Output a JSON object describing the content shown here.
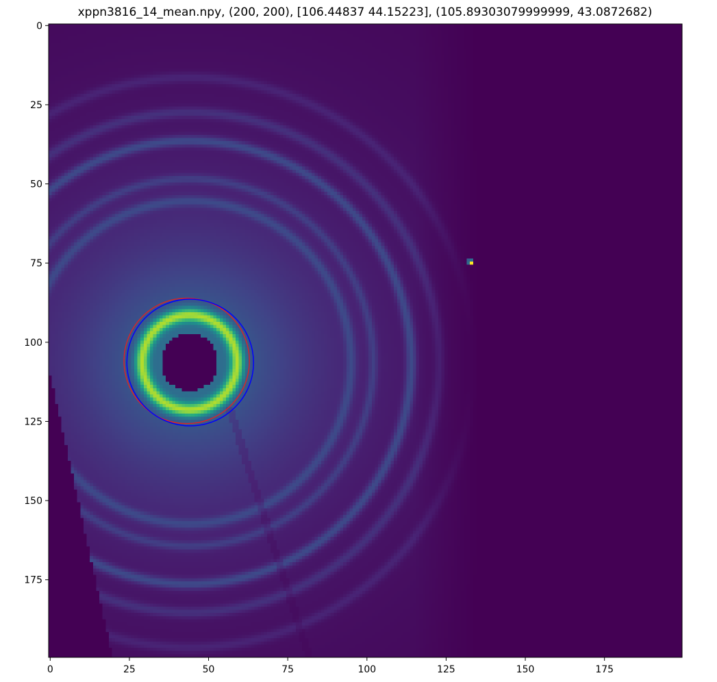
{
  "figure": {
    "title": "xppn3816_14_mean.npy, (200, 200), [106.44837  44.15223], (105.89303079999999, 43.0872682)"
  },
  "chart_data": {
    "type": "heatmap",
    "title": "xppn3816_14_mean.npy, (200, 200), [106.44837  44.15223], (105.89303079999999, 43.0872682)",
    "image_shape": [
      200,
      200
    ],
    "colormap": "viridis",
    "origin": "upper",
    "xlim": [
      -0.5,
      199.5
    ],
    "ylim": [
      199.5,
      -0.5
    ],
    "x_ticks": [
      0,
      25,
      50,
      75,
      100,
      125,
      150,
      175
    ],
    "y_ticks": [
      0,
      25,
      50,
      75,
      100,
      125,
      150,
      175
    ],
    "x_tick_labels": [
      "0",
      "25",
      "50",
      "75",
      "100",
      "125",
      "150",
      "175"
    ],
    "y_tick_labels": [
      "0",
      "25",
      "50",
      "75",
      "100",
      "125",
      "150",
      "175"
    ],
    "xlabel": "",
    "ylabel": "",
    "grid": false,
    "beam_center": {
      "row": 106.4,
      "col": 44.0
    },
    "beam_stop_radius": 9,
    "fitted_circles": [
      {
        "name": "fit-red",
        "color": "#d62728",
        "center_row": 105.9,
        "center_col": 43.1,
        "radius": 19.8
      },
      {
        "name": "fit-blue",
        "color": "#0000ff",
        "center_row": 106.4,
        "center_col": 44.2,
        "radius": 20.0
      }
    ],
    "scattering_rings": [
      {
        "radius": 15,
        "intensity": 0.58,
        "width": 2.2
      },
      {
        "radius": 51,
        "intensity": 0.12,
        "width": 1.6
      },
      {
        "radius": 58,
        "intensity": 0.1,
        "width": 1.4
      },
      {
        "radius": 70,
        "intensity": 0.16,
        "width": 1.6
      },
      {
        "radius": 79,
        "intensity": 0.09,
        "width": 1.6
      },
      {
        "radius": 90,
        "intensity": 0.06,
        "width": 1.6
      }
    ],
    "hot_pixel": {
      "row": 75,
      "col": 133,
      "value": 1.0
    },
    "background_value": 0.0,
    "colors": {
      "background": "#440154",
      "hot_pixel": "#fde725",
      "frame": "#000000"
    }
  }
}
